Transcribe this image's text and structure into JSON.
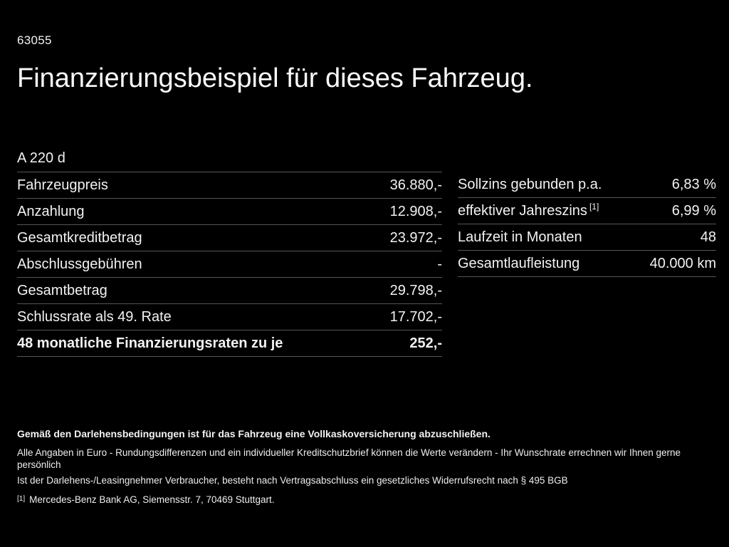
{
  "page": {
    "background_color": "#000000",
    "text_color": "#f2f2f2",
    "divider_color": "#565656"
  },
  "header": {
    "code": "63055",
    "title": "Finanzierungsbeispiel für dieses Fahrzeug.",
    "model": "A 220 d"
  },
  "left_table": {
    "rows": [
      {
        "label": "Fahrzeugpreis",
        "value": "36.880,-"
      },
      {
        "label": "Anzahlung",
        "value": "12.908,-"
      },
      {
        "label": "Gesamtkreditbetrag",
        "value": "23.972,-"
      },
      {
        "label": "Abschlussgebühren",
        "value": "-"
      },
      {
        "label": "Gesamtbetrag",
        "value": "29.798,-"
      },
      {
        "label": "Schlussrate als 49. Rate",
        "value": "17.702,-"
      },
      {
        "label": "48 monatliche Finanzierungsraten zu je",
        "value": "252,-"
      }
    ]
  },
  "right_table": {
    "rows": [
      {
        "label": "Sollzins gebunden p.a.",
        "value": "6,83 %"
      },
      {
        "label": "effektiver Jahreszins",
        "superscript": "[1]",
        "value": "6,99 %"
      },
      {
        "label": "Laufzeit in Monaten",
        "value": "48"
      },
      {
        "label": "Gesamtlaufleistung",
        "value": "40.000 km"
      }
    ]
  },
  "footer": {
    "bold_note": "Gemäß den Darlehensbedingungen ist für das Fahrzeug eine Vollkaskoversicherung abzuschließen.",
    "notes": [
      "Alle Angaben in Euro - Rundungsdifferenzen und ein individueller Kreditschutzbrief können die Werte verändern - Ihr Wunschrate errechnen wir Ihnen gerne persönlich",
      "Ist der Darlehens-/Leasingnehmer Verbraucher, besteht nach Vertragsabschluss ein gesetzliches Widerrufsrecht nach § 495 BGB"
    ],
    "footnote_marker": "[1]",
    "footnote": "Mercedes-Benz Bank AG, Siemensstr. 7, 70469 Stuttgart."
  }
}
